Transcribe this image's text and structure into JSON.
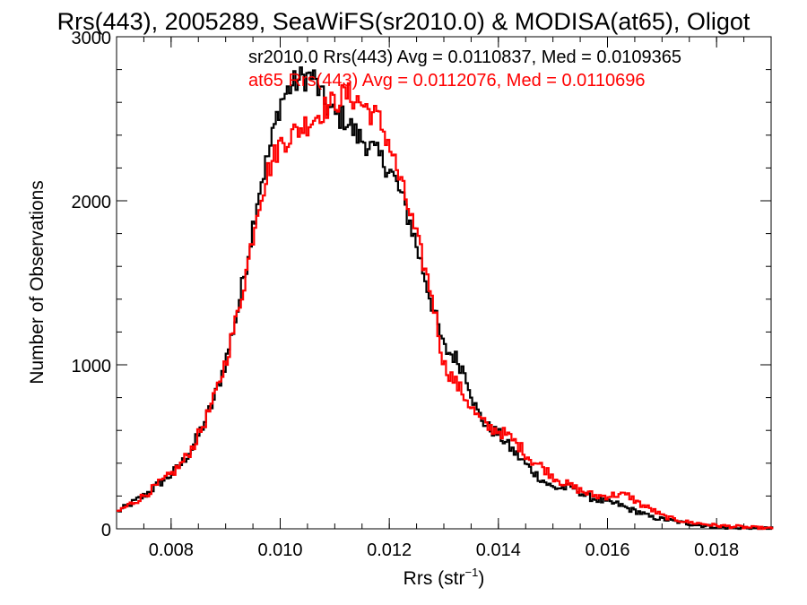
{
  "chart_data": {
    "type": "line",
    "title": "Rrs(443), 2005289, SeaWiFS(sr2010.0) & MODISA(at65), Oligot",
    "xlabel_main": "Rrs (str",
    "xlabel_sup": "−1",
    "xlabel_close": ")",
    "ylabel": "Number of Observations",
    "xlim": [
      0.007,
      0.019
    ],
    "ylim": [
      0,
      3000
    ],
    "x_ticks": [
      0.008,
      0.01,
      0.012,
      0.014,
      0.016,
      0.018
    ],
    "x_tick_labels": [
      "0.008",
      "0.010",
      "0.012",
      "0.014",
      "0.016",
      "0.018"
    ],
    "y_ticks": [
      0,
      1000,
      2000,
      3000
    ],
    "y_tick_labels": [
      "0",
      "1000",
      "2000",
      "3000"
    ],
    "grid": false,
    "legend_position": "top-right",
    "series": [
      {
        "name": "sr2010.0 Rrs(443) Avg = 0.0110837, Med = 0.0109365",
        "color": "#000000",
        "x": [
          0.007,
          0.0075,
          0.0078,
          0.008,
          0.0082,
          0.0084,
          0.0086,
          0.0088,
          0.009,
          0.0092,
          0.0094,
          0.0096,
          0.0098,
          0.01,
          0.0102,
          0.0104,
          0.0106,
          0.0108,
          0.011,
          0.0112,
          0.0114,
          0.0116,
          0.0118,
          0.012,
          0.0122,
          0.0124,
          0.0126,
          0.0128,
          0.013,
          0.0132,
          0.0134,
          0.0136,
          0.0138,
          0.014,
          0.0142,
          0.0144,
          0.0146,
          0.0148,
          0.015,
          0.0152,
          0.0154,
          0.0156,
          0.0158,
          0.016,
          0.0162,
          0.0164,
          0.0166,
          0.0168,
          0.017,
          0.0175,
          0.018,
          0.0185,
          0.019
        ],
        "y": [
          100,
          200,
          280,
          330,
          400,
          500,
          640,
          800,
          1020,
          1300,
          1650,
          2050,
          2300,
          2600,
          2700,
          2750,
          2760,
          2600,
          2520,
          2500,
          2400,
          2350,
          2270,
          2200,
          2050,
          1850,
          1600,
          1350,
          1100,
          1050,
          950,
          720,
          620,
          580,
          500,
          430,
          360,
          300,
          250,
          250,
          250,
          200,
          180,
          160,
          150,
          120,
          100,
          70,
          60,
          30,
          10,
          5,
          0
        ]
      },
      {
        "name": "at65 Rrs(443) Avg = 0.0112076, Med = 0.0110696",
        "color": "#ff0000",
        "x": [
          0.007,
          0.0075,
          0.0078,
          0.008,
          0.0082,
          0.0084,
          0.0086,
          0.0088,
          0.009,
          0.0092,
          0.0094,
          0.0096,
          0.0098,
          0.01,
          0.0102,
          0.0104,
          0.0106,
          0.0108,
          0.011,
          0.0112,
          0.0114,
          0.0116,
          0.0118,
          0.012,
          0.0122,
          0.0124,
          0.0126,
          0.0128,
          0.013,
          0.0132,
          0.0134,
          0.0136,
          0.0138,
          0.014,
          0.0142,
          0.0144,
          0.0146,
          0.0148,
          0.015,
          0.0152,
          0.0154,
          0.0156,
          0.0158,
          0.016,
          0.0162,
          0.0164,
          0.0166,
          0.0168,
          0.017,
          0.0172,
          0.0175,
          0.018,
          0.0185,
          0.019
        ],
        "y": [
          100,
          200,
          280,
          330,
          400,
          500,
          640,
          800,
          1020,
          1280,
          1600,
          1980,
          2200,
          2350,
          2400,
          2450,
          2500,
          2560,
          2600,
          2650,
          2620,
          2560,
          2500,
          2350,
          2120,
          1900,
          1650,
          1400,
          1000,
          900,
          800,
          690,
          620,
          600,
          560,
          500,
          420,
          380,
          320,
          280,
          250,
          220,
          200,
          200,
          210,
          200,
          150,
          120,
          80,
          60,
          40,
          20,
          10,
          0
        ]
      }
    ]
  }
}
